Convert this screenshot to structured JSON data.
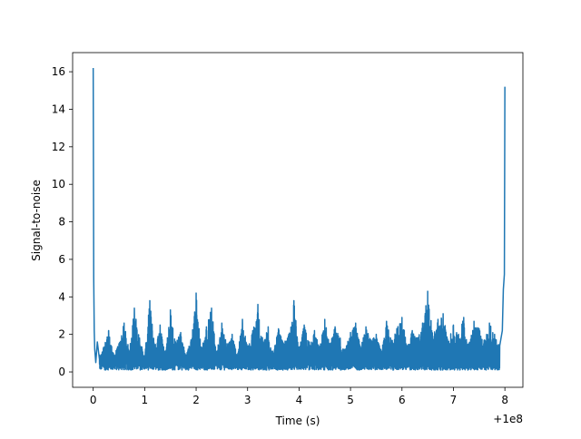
{
  "chart_data": {
    "type": "line",
    "title": "",
    "xlabel": "Time (s)",
    "ylabel": "Signal-to-noise",
    "x_offset_label": "+1e8",
    "xlim": [
      -0.4,
      8.35
    ],
    "ylim": [
      -0.82,
      17.02
    ],
    "x_ticks": [
      0,
      1,
      2,
      3,
      4,
      5,
      6,
      7,
      8
    ],
    "x_tick_labels": [
      "0",
      "1",
      "2",
      "3",
      "4",
      "5",
      "6",
      "7",
      "8"
    ],
    "y_ticks": [
      0,
      2,
      4,
      6,
      8,
      10,
      12,
      14,
      16
    ],
    "y_tick_labels": [
      "0",
      "2",
      "4",
      "6",
      "8",
      "10",
      "12",
      "14",
      "16"
    ],
    "grid": false,
    "legend": "none",
    "color": "#1f77b4",
    "series": [
      {
        "x": [
          0.0,
          0.01,
          0.02,
          0.03,
          0.05,
          0.08,
          0.12,
          0.2,
          0.3,
          0.4,
          0.5,
          0.6,
          0.7,
          0.8,
          0.9,
          1.0,
          1.1,
          1.2,
          1.3,
          1.4,
          1.5,
          1.6,
          1.7,
          1.8,
          1.9,
          2.0,
          2.1,
          2.2,
          2.3,
          2.4,
          2.5,
          2.6,
          2.7,
          2.8,
          2.9,
          3.0,
          3.1,
          3.2,
          3.3,
          3.4,
          3.5,
          3.6,
          3.7,
          3.8,
          3.9,
          4.0,
          4.1,
          4.2,
          4.3,
          4.4,
          4.5,
          4.6,
          4.7,
          4.8,
          4.9,
          5.0,
          5.1,
          5.2,
          5.3,
          5.4,
          5.5,
          5.6,
          5.7,
          5.8,
          5.9,
          6.0,
          6.1,
          6.2,
          6.3,
          6.4,
          6.5,
          6.6,
          6.7,
          6.8,
          6.9,
          7.0,
          7.1,
          7.2,
          7.3,
          7.4,
          7.5,
          7.6,
          7.7,
          7.8,
          7.9,
          7.95,
          7.97,
          7.99,
          8.0
        ],
        "y": [
          16.2,
          5.0,
          2.2,
          1.2,
          0.5,
          1.6,
          0.7,
          1.3,
          2.2,
          0.9,
          1.5,
          2.6,
          1.1,
          3.4,
          1.8,
          0.8,
          3.8,
          1.4,
          2.5,
          1.0,
          3.3,
          1.6,
          2.1,
          0.9,
          1.7,
          4.2,
          1.2,
          2.4,
          3.4,
          1.1,
          2.6,
          1.5,
          2.0,
          0.8,
          2.8,
          1.3,
          2.2,
          3.6,
          1.6,
          2.4,
          1.0,
          2.3,
          1.5,
          2.0,
          3.8,
          1.2,
          2.5,
          1.6,
          2.2,
          1.3,
          2.8,
          1.5,
          2.4,
          1.8,
          1.2,
          2.1,
          2.6,
          1.3,
          2.4,
          1.7,
          2.0,
          1.1,
          2.7,
          1.6,
          2.3,
          2.9,
          1.4,
          2.2,
          1.8,
          2.6,
          4.3,
          1.9,
          2.8,
          3.1,
          1.6,
          2.5,
          2.0,
          2.9,
          1.5,
          2.7,
          2.3,
          1.7,
          2.6,
          2.0,
          1.4,
          2.2,
          4.4,
          5.2,
          15.2
        ]
      }
    ]
  }
}
